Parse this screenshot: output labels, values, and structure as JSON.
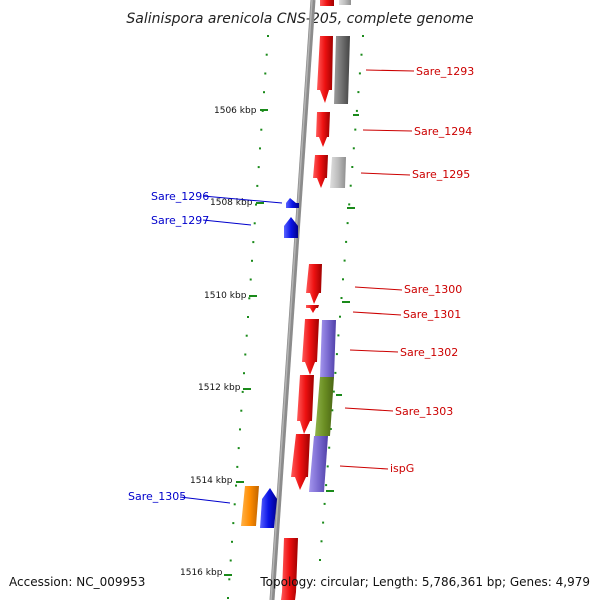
{
  "title": "Salinispora arenicola CNS-205, complete genome",
  "footer": {
    "accession": "Accession: NC_009953",
    "topology": "Topology: circular; Length: 5,786,361 bp; Genes: 4,979"
  },
  "ticks": [
    "1506 kbp",
    "1508 kbp",
    "1510 kbp",
    "1512 kbp",
    "1514 kbp",
    "1516 kbp"
  ],
  "genes": {
    "forward": [
      "Sare_1293",
      "Sare_1294",
      "Sare_1295",
      "Sare_1300",
      "Sare_1301",
      "Sare_1302",
      "Sare_1303",
      "ispG"
    ],
    "reverse": [
      "Sare_1296",
      "Sare_1297",
      "Sare_1305"
    ]
  },
  "colors": {
    "forward_gene": "#ee1111",
    "reverse_gene": "#0a14e6",
    "forward_label": "#cc0000",
    "reverse_label": "#0000cc",
    "backbone": "#8c8c8c",
    "tick_marks": "#1a8a1a",
    "cog_gray": "#707070",
    "cog_light_gray": "#bdbdbd",
    "cog_purple": "#7a6ad0",
    "cog_olive": "#6b8e23",
    "cog_orange": "#ff8c00"
  }
}
